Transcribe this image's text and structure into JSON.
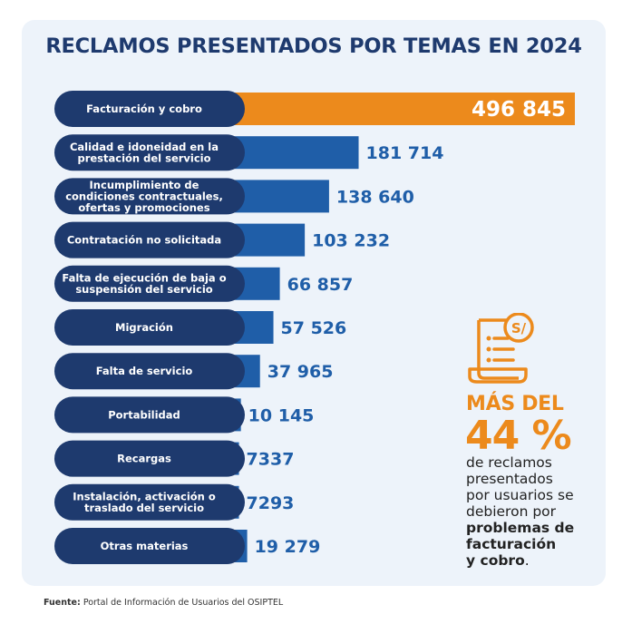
{
  "chart_data": {
    "type": "bar",
    "orientation": "horizontal",
    "title": "RECLAMOS PRESENTADOS POR TEMAS EN 2024",
    "categories": [
      [
        "Facturación y cobro"
      ],
      [
        "Calidad e idoneidad en la",
        "prestación del servicio"
      ],
      [
        "Incumplimiento de",
        "condiciones contractuales,",
        "ofertas y promociones"
      ],
      [
        "Contratación no solicitada"
      ],
      [
        "Falta de ejecución de baja o",
        "suspensión del servicio"
      ],
      [
        "Migración"
      ],
      [
        "Falta de servicio"
      ],
      [
        "Portabilidad"
      ],
      [
        "Recargas"
      ],
      [
        "Instalación, activación o",
        "traslado del servicio"
      ],
      [
        "Otras materias"
      ]
    ],
    "values": [
      496845,
      181714,
      138640,
      103232,
      66857,
      57526,
      37965,
      10145,
      7337,
      7293,
      19279
    ],
    "value_labels": [
      "496 845",
      "181 714",
      "138 640",
      "103 232",
      "66 857",
      "57 526",
      "37 965",
      "10 145",
      "7337",
      "7293",
      "19 279"
    ],
    "highlight_index": 0,
    "colors": {
      "bar": "#1f5ea8",
      "highlight": "#ec8a1c",
      "pill": "#1e3a6e",
      "value_text": "#1f5ea8",
      "title": "#1e3a6e"
    }
  },
  "side_note": {
    "icon": "receipt-soles-icon",
    "lead": "MÁS DEL",
    "big": "44 %",
    "text_lines": [
      "de reclamos",
      "presentados",
      "por usuarios se",
      "debieron por"
    ],
    "bold_lines": [
      "problemas de",
      "facturación"
    ],
    "last_bold": "y cobro",
    "last_plain": "."
  },
  "source": {
    "label": "Fuente:",
    "text": "Portal de Información de Usuarios del OSIPTEL"
  }
}
